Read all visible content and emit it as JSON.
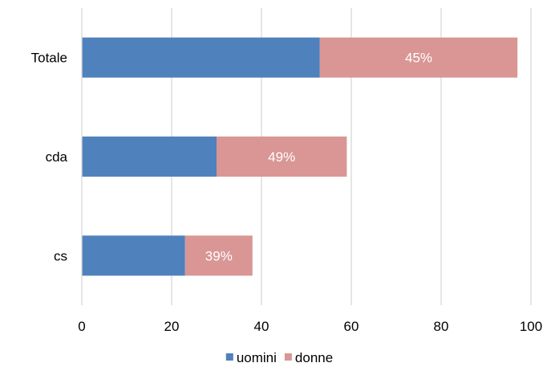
{
  "chart_data": {
    "type": "bar",
    "orientation": "horizontal",
    "stacked": true,
    "categories": [
      "Totale",
      "cda",
      "cs"
    ],
    "series": [
      {
        "name": "uomini",
        "values": [
          53,
          30,
          23
        ],
        "color": "#4f81bd"
      },
      {
        "name": "donne",
        "values": [
          44,
          29,
          15
        ],
        "color": "#d99694"
      }
    ],
    "data_labels": [
      "45%",
      "49%",
      "39%"
    ],
    "xlim": [
      0,
      100
    ],
    "xticks": [
      0,
      20,
      40,
      60,
      80,
      100
    ],
    "grid": true,
    "legend_position": "bottom",
    "title": "",
    "xlabel": "",
    "ylabel": ""
  }
}
